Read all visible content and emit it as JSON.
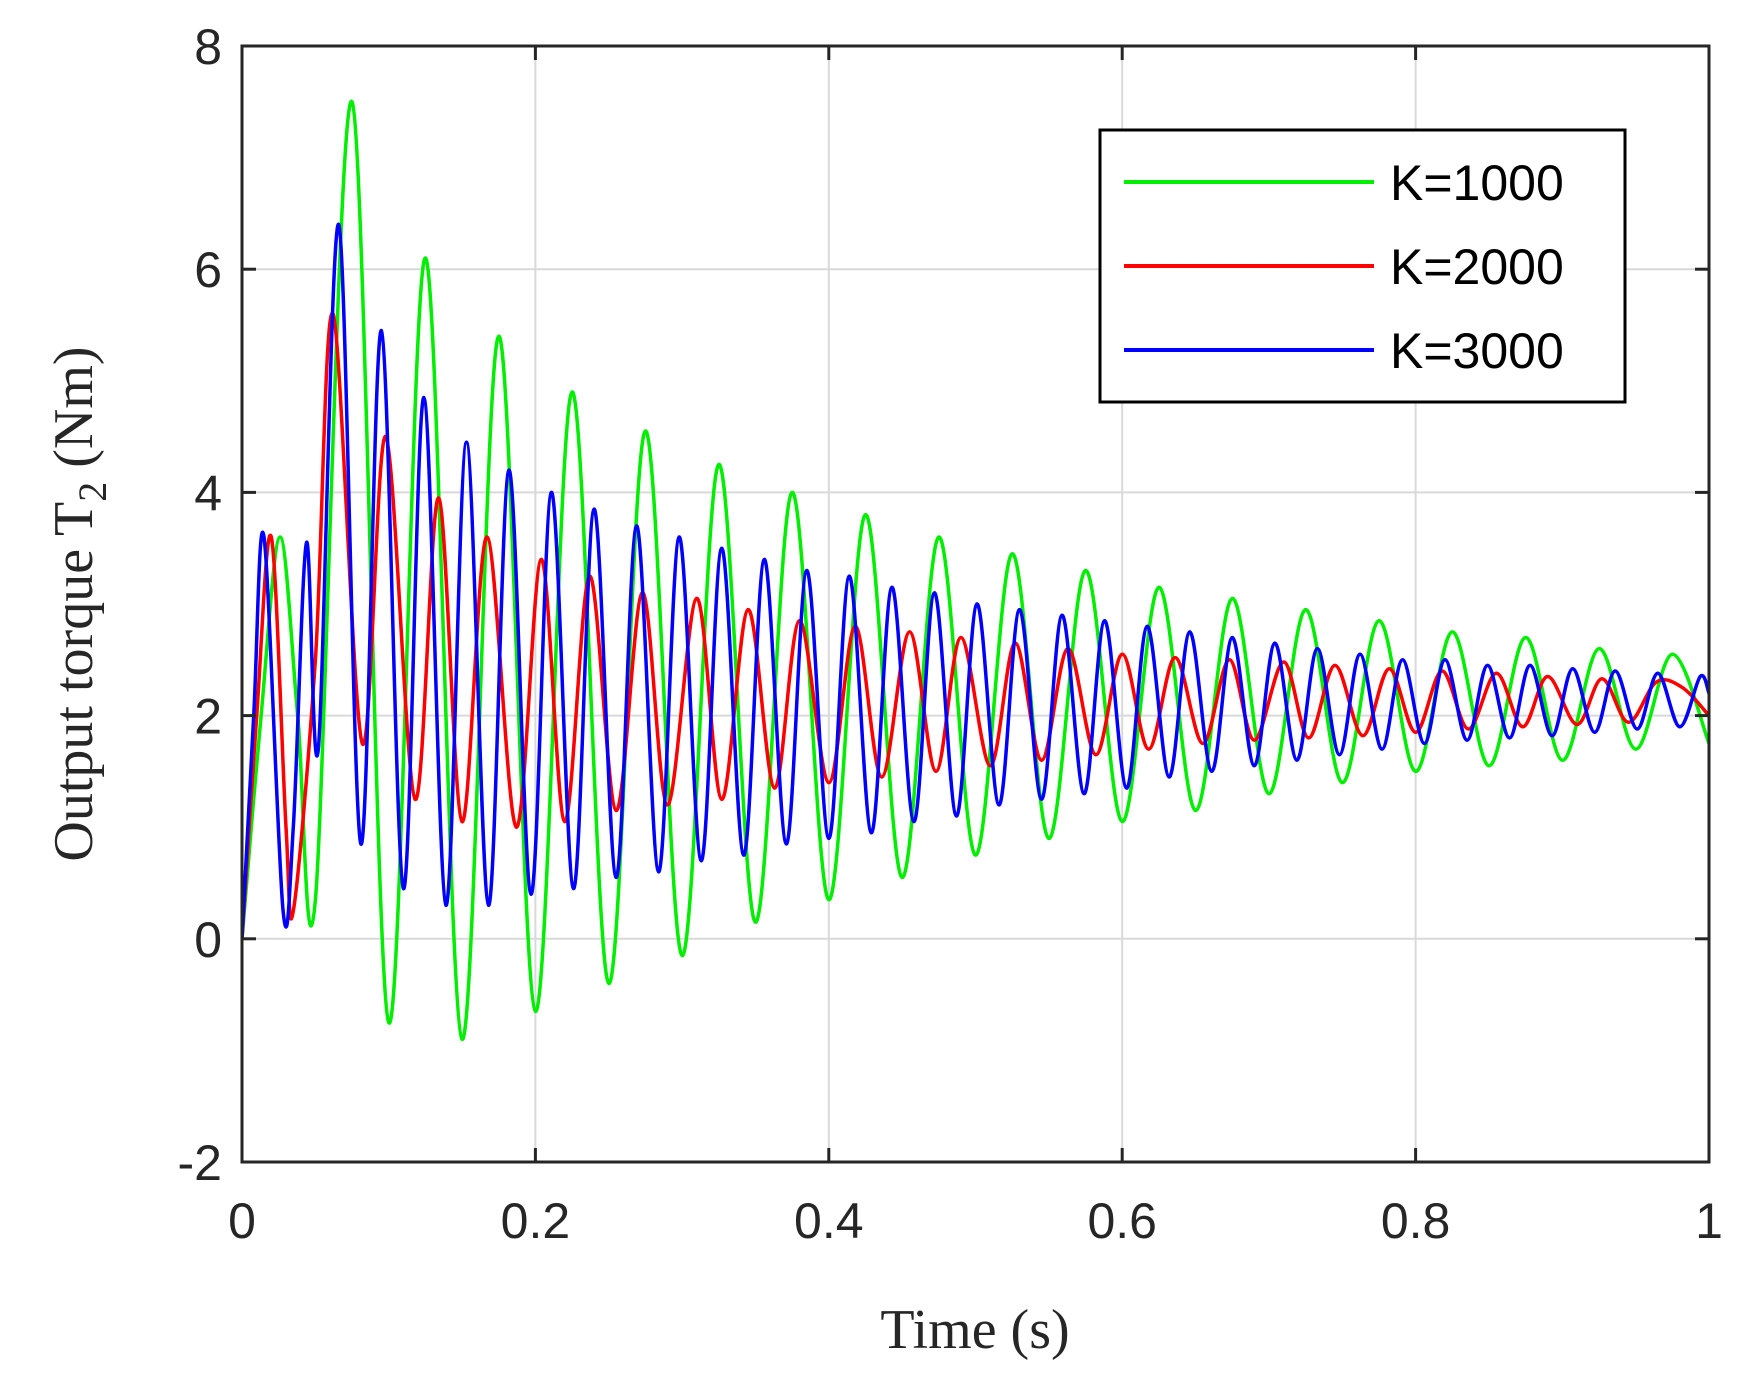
{
  "chart_data": {
    "type": "line",
    "title": "",
    "xlabel": "Time (s)",
    "ylabel_main": "Output torque T",
    "ylabel_subscript": "2",
    "ylabel_unit": "(Nm)",
    "xlim": [
      0,
      1
    ],
    "ylim": [
      -2,
      8
    ],
    "xticks": [
      0,
      0.2,
      0.4,
      0.6,
      0.8,
      1
    ],
    "xtick_labels": [
      "0",
      "0.2",
      "0.4",
      "0.6",
      "0.8",
      "1"
    ],
    "yticks": [
      -2,
      0,
      2,
      4,
      6,
      8
    ],
    "ytick_labels": [
      "-2",
      "0",
      "2",
      "4",
      "6",
      "8"
    ],
    "grid": true,
    "legend_position": "top-right",
    "series": [
      {
        "name": "K=1000",
        "color": "#00ee00",
        "x": [
          0,
          0.013,
          0.026,
          0.038,
          0.05,
          0.075,
          0.1,
          0.125,
          0.15,
          0.175,
          0.2,
          0.225,
          0.25,
          0.275,
          0.3,
          0.325,
          0.35,
          0.375,
          0.4,
          0.425,
          0.45,
          0.475,
          0.5,
          0.525,
          0.55,
          0.575,
          0.6,
          0.625,
          0.65,
          0.675,
          0.7,
          0.725,
          0.75,
          0.775,
          0.8,
          0.825,
          0.85,
          0.875,
          0.9,
          0.925,
          0.95,
          0.975,
          1.0
        ],
        "y": [
          0,
          2.0,
          3.6,
          2.0,
          0.35,
          7.5,
          -0.75,
          6.1,
          -0.9,
          5.4,
          -0.65,
          4.9,
          -0.4,
          4.55,
          -0.15,
          4.25,
          0.15,
          4.0,
          0.35,
          3.8,
          0.55,
          3.6,
          0.75,
          3.45,
          0.9,
          3.3,
          1.05,
          3.15,
          1.15,
          3.05,
          1.3,
          2.95,
          1.4,
          2.85,
          1.5,
          2.75,
          1.55,
          2.7,
          1.6,
          2.6,
          1.7,
          2.55,
          1.75
        ]
      },
      {
        "name": "K=2000",
        "color": "#ff0000",
        "x": [
          0,
          0.01,
          0.02,
          0.03,
          0.035,
          0.05,
          0.062,
          0.082,
          0.098,
          0.118,
          0.134,
          0.15,
          0.167,
          0.187,
          0.204,
          0.22,
          0.237,
          0.255,
          0.273,
          0.29,
          0.31,
          0.327,
          0.345,
          0.363,
          0.38,
          0.4,
          0.418,
          0.436,
          0.455,
          0.473,
          0.49,
          0.51,
          0.527,
          0.545,
          0.563,
          0.582,
          0.6,
          0.618,
          0.636,
          0.655,
          0.673,
          0.69,
          0.71,
          0.727,
          0.745,
          0.764,
          0.782,
          0.8,
          0.818,
          0.836,
          0.855,
          0.873,
          0.89,
          0.91,
          0.927,
          0.945,
          0.964,
          0.982,
          1.0
        ],
        "y": [
          0,
          2.0,
          3.6,
          1.0,
          0.25,
          2.5,
          5.6,
          1.75,
          4.5,
          1.25,
          3.95,
          1.05,
          3.6,
          1.0,
          3.4,
          1.05,
          3.25,
          1.15,
          3.1,
          1.2,
          3.05,
          1.25,
          2.95,
          1.35,
          2.85,
          1.4,
          2.8,
          1.45,
          2.75,
          1.5,
          2.7,
          1.55,
          2.65,
          1.6,
          2.6,
          1.65,
          2.55,
          1.7,
          2.52,
          1.75,
          2.5,
          1.78,
          2.48,
          1.8,
          2.45,
          1.82,
          2.42,
          1.85,
          2.4,
          1.88,
          2.38,
          1.9,
          2.35,
          1.92,
          2.33,
          1.94,
          2.3,
          2.25,
          2.0
        ]
      },
      {
        "name": "K=3000",
        "color": "#0000ff",
        "x": [
          0,
          0.008,
          0.015,
          0.028,
          0.035,
          0.044,
          0.052,
          0.066,
          0.081,
          0.095,
          0.11,
          0.124,
          0.139,
          0.153,
          0.168,
          0.182,
          0.197,
          0.211,
          0.226,
          0.24,
          0.255,
          0.269,
          0.284,
          0.298,
          0.313,
          0.327,
          0.342,
          0.356,
          0.371,
          0.385,
          0.4,
          0.414,
          0.429,
          0.443,
          0.458,
          0.472,
          0.487,
          0.501,
          0.516,
          0.53,
          0.545,
          0.559,
          0.574,
          0.588,
          0.603,
          0.617,
          0.632,
          0.646,
          0.661,
          0.675,
          0.69,
          0.704,
          0.719,
          0.733,
          0.748,
          0.762,
          0.777,
          0.791,
          0.806,
          0.82,
          0.835,
          0.849,
          0.864,
          0.878,
          0.893,
          0.907,
          0.922,
          0.936,
          0.951,
          0.965,
          0.98,
          0.994,
          1.0
        ],
        "y": [
          0,
          2.0,
          3.6,
          0.25,
          1.0,
          3.55,
          1.7,
          6.4,
          0.85,
          5.45,
          0.45,
          4.85,
          0.3,
          4.45,
          0.3,
          4.2,
          0.4,
          4.0,
          0.45,
          3.85,
          0.55,
          3.7,
          0.6,
          3.6,
          0.7,
          3.5,
          0.75,
          3.4,
          0.85,
          3.3,
          0.9,
          3.25,
          0.95,
          3.15,
          1.05,
          3.1,
          1.1,
          3.0,
          1.2,
          2.95,
          1.25,
          2.9,
          1.3,
          2.85,
          1.35,
          2.8,
          1.45,
          2.75,
          1.5,
          2.7,
          1.55,
          2.65,
          1.6,
          2.6,
          1.65,
          2.55,
          1.7,
          2.5,
          1.75,
          2.5,
          1.78,
          2.45,
          1.8,
          2.45,
          1.82,
          2.42,
          1.85,
          2.4,
          1.88,
          2.38,
          1.9,
          2.35,
          2.2
        ]
      }
    ]
  }
}
